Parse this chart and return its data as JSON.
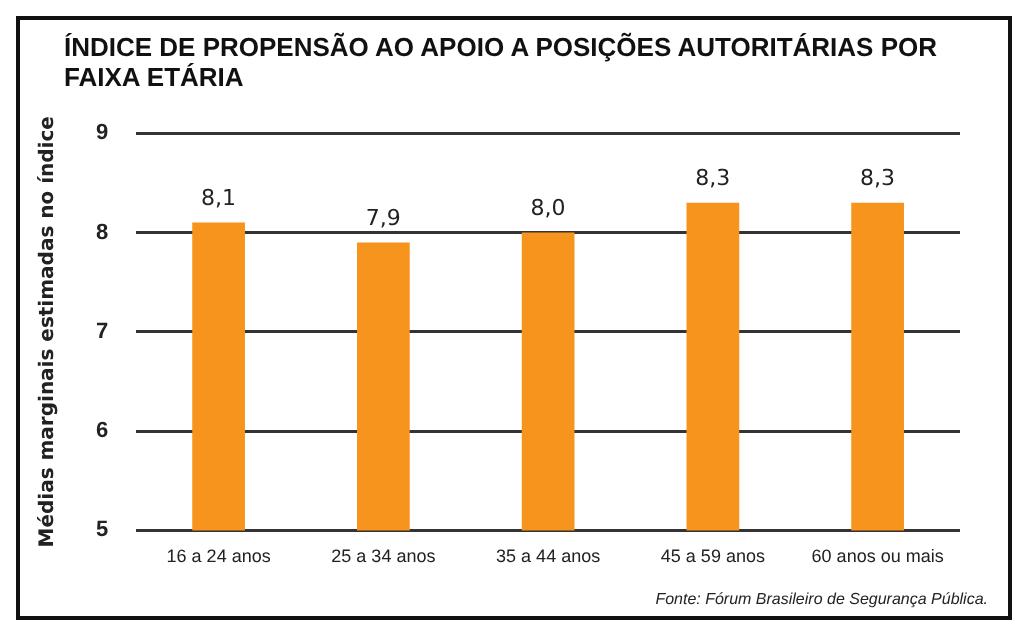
{
  "chart_data": {
    "type": "bar",
    "title": "ÍNDICE DE PROPENSÃO AO APOIO A POSIÇÕES AUTORITÁRIAS POR FAIXA ETÁRIA",
    "ylabel": "Médias marginais estimadas no índice",
    "categories": [
      "16 a 24 anos",
      "25 a 34 anos",
      "35 a 44 anos",
      "45 a 59 anos",
      "60 anos ou mais"
    ],
    "values": [
      8.1,
      7.9,
      8.0,
      8.3,
      8.3
    ],
    "value_labels": [
      "8,1",
      "7,9",
      "8,0",
      "8,3",
      "8,3"
    ],
    "color": "#f7941d",
    "ylim": [
      5,
      9
    ],
    "yticks": [
      5,
      6,
      7,
      8,
      9
    ],
    "grid": "y",
    "annotations": [
      "Fonte: Fórum Brasileiro de Segurança Pública."
    ]
  }
}
